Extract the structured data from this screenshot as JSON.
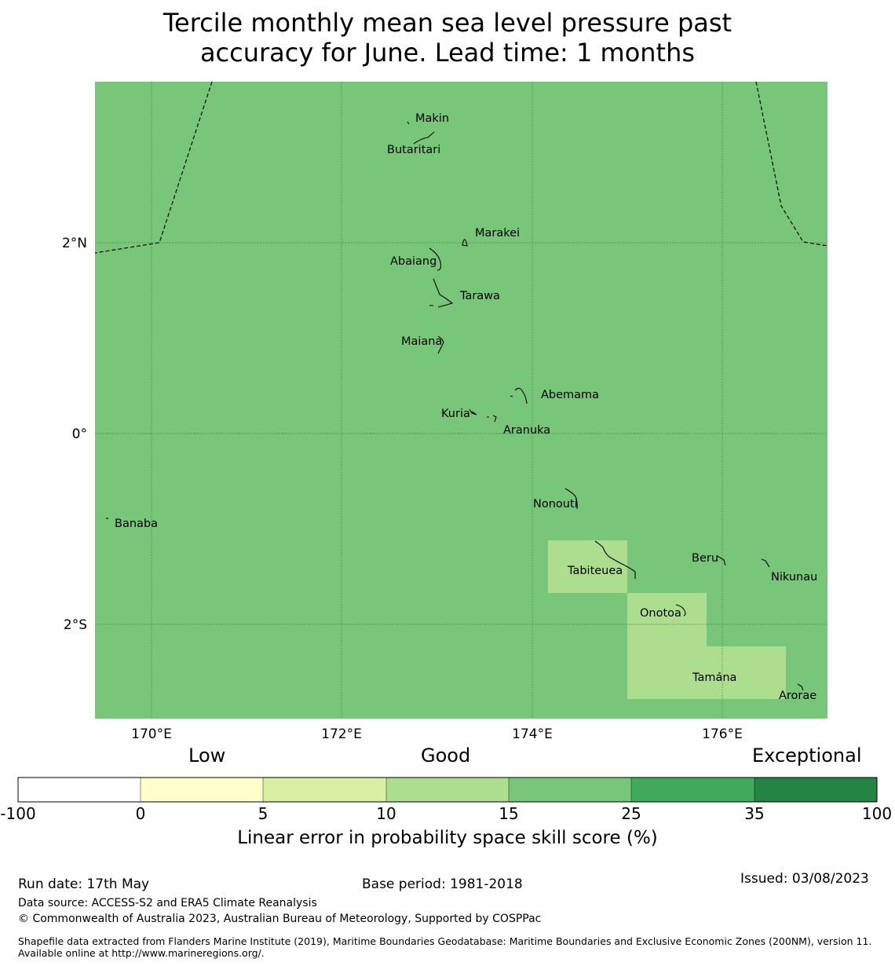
{
  "title_line1": "Tercile monthly mean sea level pressure past",
  "title_line2": "accuracy for June. Lead time: 1 months",
  "map": {
    "background_color": "#78c679",
    "grid": true,
    "lon_ticks": [
      "170°E",
      "172°E",
      "174°E",
      "176°E"
    ],
    "lat_ticks": [
      "2°N",
      "0°",
      "2°S"
    ],
    "islands": [
      {
        "name": "Makin"
      },
      {
        "name": "Butaritari"
      },
      {
        "name": "Marakei"
      },
      {
        "name": "Abaiang"
      },
      {
        "name": "Tarawa"
      },
      {
        "name": "Maiana"
      },
      {
        "name": "Abemama"
      },
      {
        "name": "Kuria"
      },
      {
        "name": "Aranuka"
      },
      {
        "name": "Nonouti"
      },
      {
        "name": "Banaba"
      },
      {
        "name": "Tabiteuea"
      },
      {
        "name": "Beru"
      },
      {
        "name": "Nikunau"
      },
      {
        "name": "Onotoa"
      },
      {
        "name": "Tamana"
      },
      {
        "name": "Arorae"
      }
    ],
    "low_skill_cells_color": "#addd8e"
  },
  "colorbar": {
    "categories": [
      "Low",
      "Good",
      "Exceptional"
    ],
    "bins": [
      {
        "from": "-100",
        "to": "0",
        "color": "#ffffff"
      },
      {
        "from": "0",
        "to": "5",
        "color": "#ffffcc"
      },
      {
        "from": "5",
        "to": "10",
        "color": "#d9f0a3"
      },
      {
        "from": "10",
        "to": "15",
        "color": "#addd8e"
      },
      {
        "from": "15",
        "to": "25",
        "color": "#78c679"
      },
      {
        "from": "25",
        "to": "35",
        "color": "#41ab5d"
      },
      {
        "from": "35",
        "to": "100",
        "color": "#238443"
      }
    ],
    "ticks": [
      "-100",
      "0",
      "5",
      "10",
      "15",
      "25",
      "35",
      "100"
    ],
    "label": "Linear error in probability space skill score (%)"
  },
  "footer": {
    "run_date": "Run date: 17th May",
    "base_period": "Base period: 1981-2018",
    "issued": "Issued: 03/08/2023",
    "data_source": "Data source: ACCESS-S2 and ERA5 Climate Reanalysis",
    "copyright": "© Commonwealth of Australia 2023, Australian Bureau of Meteorology, Supported by COSPPac",
    "shapefile": "Shapefile data extracted from Flanders Marine Institute (2019), Maritime Boundaries Geodatabase: Maritime Boundaries and Exclusive Economic Zones (200NM), version 11. Available online at http://www.marineregions.org/."
  }
}
